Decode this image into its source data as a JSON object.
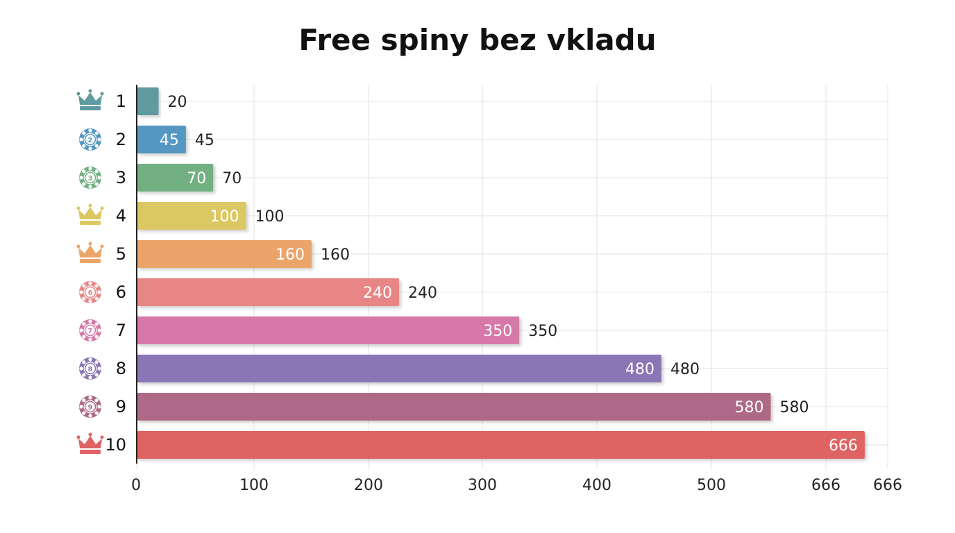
{
  "chart_data": {
    "type": "bar",
    "orientation": "horizontal",
    "title": "Free spiny bez vkladu",
    "xlabel": "",
    "ylabel": "",
    "categories": [
      "1",
      "2",
      "3",
      "4",
      "5",
      "6",
      "7",
      "8",
      "9",
      "10"
    ],
    "category_icons": [
      "crown-icon",
      "chip-icon",
      "chip-icon",
      "crown-icon",
      "crown-icon",
      "chip-icon",
      "chip-icon",
      "chip-icon",
      "chip-icon",
      "crown-icon"
    ],
    "values": [
      20,
      45,
      70,
      100,
      160,
      240,
      350,
      480,
      580,
      666
    ],
    "inside_labels": [
      "",
      "45",
      "70",
      "100",
      "160",
      "240",
      "350",
      "480",
      "580",
      "666"
    ],
    "outside_labels": [
      "20",
      "45",
      "70",
      "100",
      "160",
      "240",
      "350",
      "480",
      "580",
      ""
    ],
    "colors": [
      "#5e9aa1",
      "#5297c2",
      "#72b082",
      "#dcc862",
      "#eba56a",
      "#e88686",
      "#d679a8",
      "#8a76b5",
      "#ad6985",
      "#df6364"
    ],
    "x_ticks": [
      "0",
      "100",
      "200",
      "300",
      "400",
      "500",
      "666",
      "666"
    ],
    "grid": true,
    "legend": "none"
  }
}
